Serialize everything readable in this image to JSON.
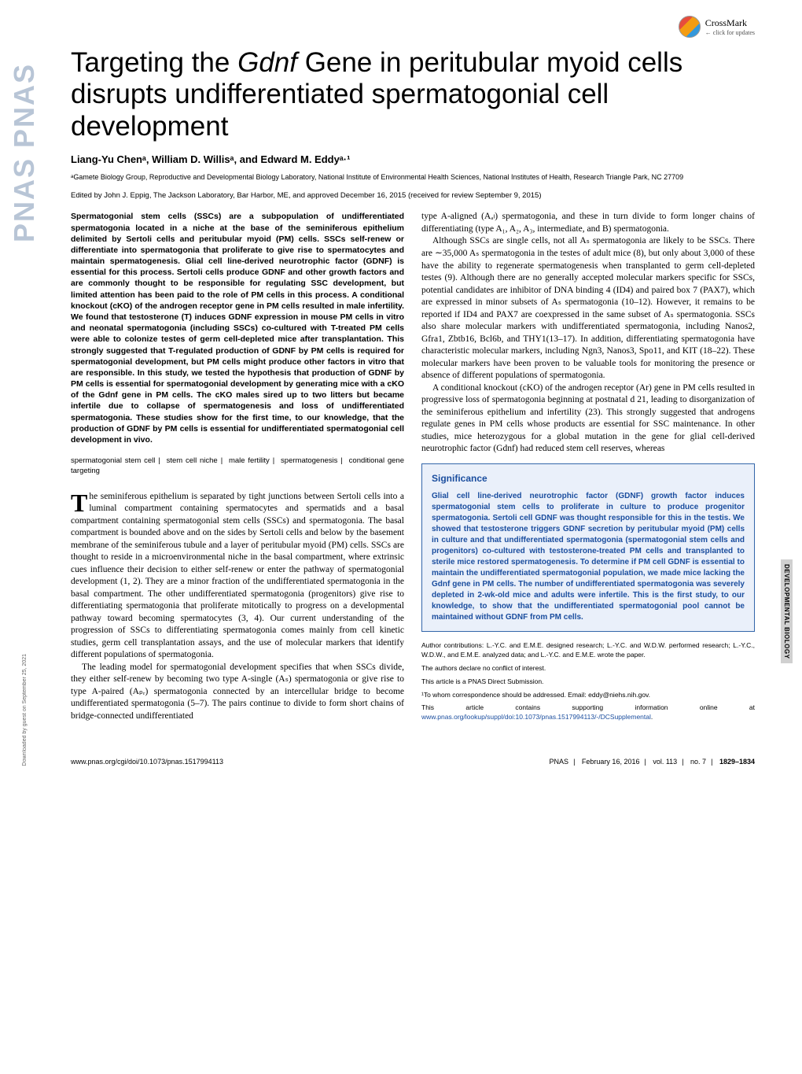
{
  "crossmark": {
    "label": "CrossMark",
    "sub": "← click for updates"
  },
  "pnas_side": "PNAS PNAS",
  "title_pre": "Targeting the ",
  "title_gene": "Gdnf",
  "title_post": " Gene in peritubular myoid cells disrupts undifferentiated spermatogonial cell development",
  "authors": "Liang-Yu Chenᵃ, William D. Willisᵃ, and Edward M. Eddyᵃ·¹",
  "affiliation": "ᵃGamete Biology Group, Reproductive and Developmental Biology Laboratory, National Institute of Environmental Health Sciences, National Institutes of Health, Research Triangle Park, NC 27709",
  "edited": "Edited by John J. Eppig, The Jackson Laboratory, Bar Harbor, ME, and approved December 16, 2015 (received for review September 9, 2015)",
  "abstract": "Spermatogonial stem cells (SSCs) are a subpopulation of undifferentiated spermatogonia located in a niche at the base of the seminiferous epithelium delimited by Sertoli cells and peritubular myoid (PM) cells. SSCs self-renew or differentiate into spermatogonia that proliferate to give rise to spermatocytes and maintain spermatogenesis. Glial cell line-derived neurotrophic factor (GDNF) is essential for this process. Sertoli cells produce GDNF and other growth factors and are commonly thought to be responsible for regulating SSC development, but limited attention has been paid to the role of PM cells in this process. A conditional knockout (cKO) of the androgen receptor gene in PM cells resulted in male infertility. We found that testosterone (T) induces GDNF expression in mouse PM cells in vitro and neonatal spermatogonia (including SSCs) co-cultured with T-treated PM cells were able to colonize testes of germ cell-depleted mice after transplantation. This strongly suggested that T-regulated production of GDNF by PM cells is required for spermatogonial development, but PM cells might produce other factors in vitro that are responsible. In this study, we tested the hypothesis that production of GDNF by PM cells is essential for spermatogonial development by generating mice with a cKO of the Gdnf gene in PM cells. The cKO males sired up to two litters but became infertile due to collapse of spermatogenesis and loss of undifferentiated spermatogonia. These studies show for the first time, to our knowledge, that the production of GDNF by PM cells is essential for undifferentiated spermatogonial cell development in vivo.",
  "keywords": [
    "spermatogonial stem cell",
    "stem cell niche",
    "male fertility",
    "spermatogenesis",
    "conditional gene targeting"
  ],
  "body_p1": "he seminiferous epithelium is separated by tight junctions between Sertoli cells into a luminal compartment containing spermatocytes and spermatids and a basal compartment containing spermatogonial stem cells (SSCs) and spermatogonia. The basal compartment is bounded above and on the sides by Sertoli cells and below by the basement membrane of the seminiferous tubule and a layer of peritubular myoid (PM) cells. SSCs are thought to reside in a microenvironmental niche in the basal compartment, where extrinsic cues influence their decision to either self-renew or enter the pathway of spermatogonial development (1, 2). They are a minor fraction of the undifferentiated spermatogonia in the basal compartment. The other undifferentiated spermatogonia (progenitors) give rise to differentiating spermatogonia that proliferate mitotically to progress on a developmental pathway toward becoming spermatocytes (3, 4). Our current understanding of the progression of SSCs to differentiating spermatogonia comes mainly from cell kinetic studies, germ cell transplantation assays, and the use of molecular markers that identify different populations of spermatogonia.",
  "body_p2": "The leading model for spermatogonial development specifies that when SSCs divide, they either self-renew by becoming two type A-single (Aₛ) spermatogonia or give rise to type A-paired (Aₚᵣ) spermatogonia connected by an intercellular bridge to become undifferentiated spermatogonia (5–7). The pairs continue to divide to form short chains of bridge-connected undifferentiated",
  "col2_p1": "type A-aligned (Aₐₗ) spermatogonia, and these in turn divide to form longer chains of differentiating (type A₁, A₂, A₃, intermediate, and B) spermatogonia.",
  "col2_p2": "Although SSCs are single cells, not all Aₛ spermatogonia are likely to be SSCs. There are ∼35,000 Aₛ spermatogonia in the testes of adult mice (8), but only about 3,000 of these have the ability to regenerate spermatogenesis when transplanted to germ cell-depleted testes (9). Although there are no generally accepted molecular markers specific for SSCs, potential candidates are inhibitor of DNA binding 4 (ID4) and paired box 7 (PAX7), which are expressed in minor subsets of Aₛ spermatogonia (10–12). However, it remains to be reported if ID4 and PAX7 are coexpressed in the same subset of Aₛ spermatogonia. SSCs also share molecular markers with undifferentiated spermatogonia, including Nanos2, Gfra1, Zbtb16, Bcl6b, and THY1(13–17). In addition, differentiating spermatogonia have characteristic molecular markers, including Ngn3, Nanos3, Spo11, and KIT (18–22). These molecular markers have been proven to be valuable tools for monitoring the presence or absence of different populations of spermatogonia.",
  "col2_p3": "A conditional knockout (cKO) of the androgen receptor (Ar) gene in PM cells resulted in progressive loss of spermatogonia beginning at postnatal d 21, leading to disorganization of the seminiferous epithelium and infertility (23). This strongly suggested that androgens regulate genes in PM cells whose products are essential for SSC maintenance. In other studies, mice heterozygous for a global mutation in the gene for glial cell-derived neurotrophic factor (Gdnf) had reduced stem cell reserves, whereas",
  "significance": {
    "heading": "Significance",
    "text": "Glial cell line-derived neurotrophic factor (GDNF) growth factor induces spermatogonial stem cells to proliferate in culture to produce progenitor spermatogonia. Sertoli cell GDNF was thought responsible for this in the testis. We showed that testosterone triggers GDNF secretion by peritubular myoid (PM) cells in culture and that undifferentiated spermatogonia (spermatogonial stem cells and progenitors) co-cultured with testosterone-treated PM cells and transplanted to sterile mice restored spermatogenesis. To determine if PM cell GDNF is essential to maintain the undifferentiated spermatogonial population, we made mice lacking the Gdnf gene in PM cells. The number of undifferentiated spermatogonia was severely depleted in 2-wk-old mice and adults were infertile. This is the first study, to our knowledge, to show that the undifferentiated spermatogonial pool cannot be maintained without GDNF from PM cells."
  },
  "footnotes": {
    "contrib": "Author contributions: L.-Y.C. and E.M.E. designed research; L.-Y.C. and W.D.W. performed research; L.-Y.C., W.D.W., and E.M.E. analyzed data; and L.-Y.C. and E.M.E. wrote the paper.",
    "coi": "The authors declare no conflict of interest.",
    "direct": "This article is a PNAS Direct Submission.",
    "corresp": "¹To whom correspondence should be addressed. Email: eddy@niehs.nih.gov.",
    "supp_pre": "This article contains supporting information online at ",
    "supp_link": "www.pnas.org/lookup/suppl/doi:10.1073/pnas.1517994113/-/DCSupplemental",
    "supp_post": "."
  },
  "side_tab": "DEVELOPMENTAL BIOLOGY",
  "download_note": "Downloaded by guest on September 25, 2021",
  "footer": {
    "left": "www.pnas.org/cgi/doi/10.1073/pnas.1517994113",
    "journal": "PNAS",
    "date": "February 16, 2016",
    "vol": "vol. 113",
    "no": "no. 7",
    "pages": "1829–1834"
  },
  "colors": {
    "link": "#1a4d9e",
    "sig_border": "#3366aa",
    "sig_bg": "#eaf0fa",
    "pnas_side": "#b8c5d6",
    "side_tab_bg": "#d0d0d0"
  },
  "fonts": {
    "title_size": 35,
    "body_size": 11.5,
    "abstract_size": 10.5,
    "footnote_size": 8.5
  }
}
